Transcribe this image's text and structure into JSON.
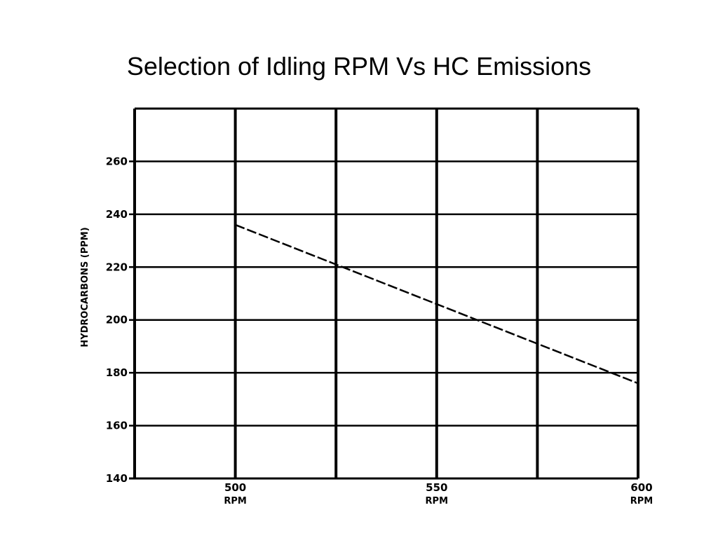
{
  "slide": {
    "title": "Selection of Idling RPM Vs HC Emissions"
  },
  "chart_data": {
    "type": "line",
    "title": "",
    "xlabel": "",
    "ylabel": "HYDROCARBONS (PPM)",
    "x_unit_label": "RPM",
    "xlim": [
      475,
      600
    ],
    "ylim": [
      140,
      280
    ],
    "x_ticks": [
      500,
      550,
      600
    ],
    "x_tick_labels": [
      "500",
      "550",
      "600"
    ],
    "y_ticks": [
      140,
      160,
      180,
      200,
      220,
      240,
      260
    ],
    "y_tick_labels": [
      "140",
      "160",
      "180",
      "200",
      "220",
      "240",
      "260"
    ],
    "grid": true,
    "series": [
      {
        "x": [
          500,
          525,
          550,
          575,
          600
        ],
        "values": [
          236,
          221,
          206,
          191,
          176
        ],
        "line_style": "dashed"
      }
    ],
    "colors": {
      "line": "#000000",
      "grid": "#000000"
    }
  }
}
